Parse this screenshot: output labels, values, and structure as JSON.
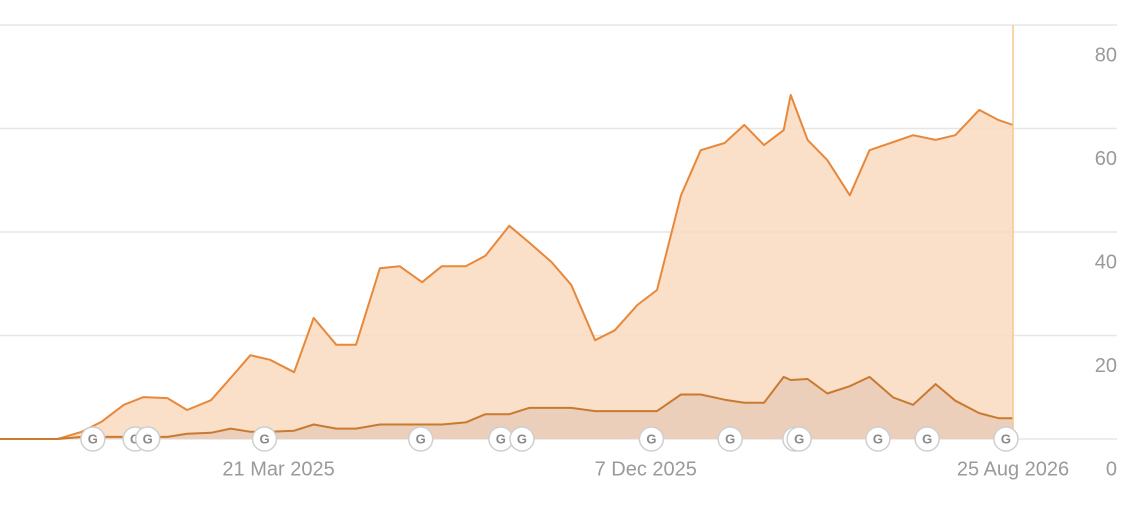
{
  "chart_data": {
    "type": "area",
    "x": [
      "2024-09-04",
      "2024-09-15",
      "2024-10-01",
      "2024-10-15",
      "2024-11-01",
      "2024-11-15",
      "2024-12-01",
      "2024-12-15",
      "2025-01-01",
      "2025-01-15",
      "2025-02-01",
      "2025-02-15",
      "2025-03-01",
      "2025-03-15",
      "2025-04-01",
      "2025-04-15",
      "2025-05-01",
      "2025-05-15",
      "2025-06-01",
      "2025-06-15",
      "2025-07-01",
      "2025-07-15",
      "2025-08-01",
      "2025-08-15",
      "2025-09-01",
      "2025-09-15",
      "2025-10-01",
      "2025-10-15",
      "2025-11-01",
      "2025-11-15",
      "2025-12-01",
      "2025-12-15",
      "2026-01-01",
      "2026-01-15",
      "2026-02-01",
      "2026-02-15",
      "2026-03-01",
      "2026-03-15",
      "2026-03-20",
      "2026-04-01",
      "2026-04-15",
      "2026-05-01",
      "2026-05-15",
      "2026-06-01",
      "2026-06-15",
      "2026-07-01",
      "2026-07-15",
      "2026-08-01",
      "2026-08-15",
      "2026-08-25"
    ],
    "series": [
      {
        "color": "#e8883a",
        "fill": "#f9d9bf",
        "values": [
          0,
          0,
          0,
          0,
          1.4,
          3.3,
          6.6,
          8.1,
          7.9,
          5.6,
          7.5,
          11.8,
          16.2,
          15.3,
          12.9,
          23.4,
          18.2,
          18.2,
          33,
          33.4,
          30.3,
          33.4,
          33.4,
          35.4,
          41.2,
          38,
          34.2,
          29.8,
          19.1,
          21,
          25.9,
          28.8,
          47.1,
          55.8,
          57.2,
          60.7,
          56.8,
          59.7,
          66.5,
          57.8,
          53.9,
          47.1,
          55.8,
          57.4,
          58.7,
          57.8,
          58.7,
          63.6,
          61.6,
          60.7
        ]
      },
      {
        "color": "#c97a2e",
        "fill": "#e9cdb7",
        "values": [
          0,
          0,
          0,
          0,
          0.4,
          0.4,
          0.4,
          0.4,
          0.4,
          1,
          1.2,
          2,
          1.4,
          1.4,
          1.6,
          2.8,
          2,
          2,
          2.8,
          2.8,
          2.8,
          2.8,
          3.2,
          4.8,
          4.8,
          6,
          6,
          6,
          5.4,
          5.4,
          5.4,
          5.4,
          8.6,
          8.6,
          7.6,
          7,
          7,
          12,
          11.4,
          11.6,
          8.8,
          10.2,
          12,
          8,
          6.6,
          10.6,
          7.4,
          5,
          4,
          4
        ]
      }
    ],
    "xlim": [
      "2024-09-04",
      "2026-08-25"
    ],
    "xticks": [
      {
        "value": "2025-03-21",
        "label": "21 Mar 2025"
      },
      {
        "value": "2025-12-07",
        "label": "7 Dec 2025"
      },
      {
        "value": "2026-08-25",
        "label": "25 Aug 2026"
      }
    ],
    "ylim": [
      0,
      80
    ],
    "yticks": [
      0,
      20,
      40,
      60,
      80
    ],
    "grid": true,
    "event_label": "G",
    "event_dates": [
      "2024-11-09",
      "2024-12-09",
      "2024-12-18",
      "2025-03-11",
      "2025-06-30",
      "2025-08-26",
      "2025-09-10",
      "2025-12-11",
      "2026-02-05",
      "2026-03-23",
      "2026-03-26",
      "2026-05-21",
      "2026-06-25",
      "2026-08-20"
    ]
  }
}
